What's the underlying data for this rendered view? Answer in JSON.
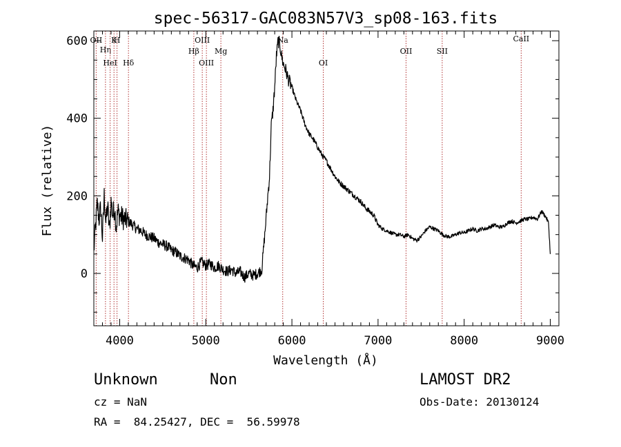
{
  "chart_data": {
    "type": "line",
    "title": "spec-56317-GAC083N57V3_sp08-163.fits",
    "xlabel": "Wavelength (Å)",
    "ylabel": "Flux (relative)",
    "xlim": [
      3700,
      9100
    ],
    "ylim": [
      -135,
      625
    ],
    "xticks": [
      4000,
      5000,
      6000,
      7000,
      8000,
      9000
    ],
    "yticks": [
      0,
      200,
      400,
      600
    ],
    "grid": false,
    "series": [
      {
        "x": [
          3700,
          3720,
          3740,
          3760,
          3780,
          3800,
          3820,
          3840,
          3860,
          3880,
          3900,
          3920,
          3940,
          3960,
          3980,
          4000,
          4050,
          4100,
          4150,
          4200,
          4250,
          4300,
          4350,
          4400,
          4450,
          4500,
          4550,
          4600,
          4650,
          4700,
          4750,
          4800,
          4850,
          4900,
          4950,
          5000,
          5050,
          5100,
          5150,
          5200,
          5250,
          5300,
          5350,
          5400,
          5450,
          5500,
          5550,
          5600,
          5650,
          5700,
          5720,
          5740,
          5760,
          5780,
          5800,
          5820,
          5840,
          5860,
          5880,
          5900,
          5920,
          5940,
          5960,
          5980,
          6000,
          6050,
          6100,
          6150,
          6200,
          6250,
          6300,
          6350,
          6400,
          6450,
          6500,
          6550,
          6600,
          6650,
          6700,
          6750,
          6800,
          6850,
          6900,
          6950,
          7000,
          7050,
          7100,
          7150,
          7200,
          7250,
          7300,
          7350,
          7400,
          7450,
          7500,
          7550,
          7600,
          7650,
          7700,
          7750,
          7800,
          7850,
          7900,
          7950,
          8000,
          8050,
          8100,
          8150,
          8200,
          8250,
          8300,
          8350,
          8400,
          8450,
          8500,
          8550,
          8600,
          8650,
          8700,
          8750,
          8800,
          8850,
          8900,
          8950,
          8980,
          9000
        ],
        "values": [
          60,
          120,
          180,
          140,
          170,
          90,
          200,
          130,
          175,
          110,
          185,
          150,
          170,
          120,
          160,
          150,
          140,
          135,
          125,
          115,
          110,
          100,
          95,
          90,
          80,
          75,
          70,
          60,
          55,
          45,
          40,
          35,
          20,
          15,
          30,
          20,
          25,
          15,
          20,
          10,
          5,
          10,
          0,
          5,
          -10,
          0,
          -5,
          0,
          10,
          140,
          200,
          250,
          380,
          420,
          480,
          560,
          600,
          590,
          560,
          540,
          530,
          515,
          500,
          490,
          480,
          445,
          420,
          385,
          360,
          345,
          325,
          305,
          290,
          270,
          250,
          235,
          225,
          215,
          205,
          195,
          185,
          170,
          160,
          150,
          125,
          115,
          110,
          105,
          100,
          100,
          95,
          100,
          90,
          85,
          95,
          110,
          120,
          115,
          110,
          100,
          95,
          95,
          100,
          105,
          105,
          110,
          115,
          110,
          115,
          115,
          120,
          125,
          120,
          120,
          130,
          135,
          130,
          135,
          140,
          140,
          145,
          140,
          160,
          145,
          130,
          50
        ]
      }
    ],
    "lines": [
      {
        "label": "OII",
        "x": 3727
      },
      {
        "label": "Hη",
        "x": 3835
      },
      {
        "label": "HeI",
        "x": 3889
      },
      {
        "label": "K",
        "x": 3934
      },
      {
        "label": "H",
        "x": 3969
      },
      {
        "label": "Hδ",
        "x": 4102
      },
      {
        "label": "Hβ",
        "x": 4861
      },
      {
        "label": "OIII",
        "x": 4959
      },
      {
        "label": "OIII",
        "x": 5007
      },
      {
        "label": "Mg",
        "x": 5175
      },
      {
        "label": "Na",
        "x": 5893
      },
      {
        "label": "OI",
        "x": 6364
      },
      {
        "label": "OII",
        "x": 7325
      },
      {
        "label": "SII",
        "x": 7745
      },
      {
        "label": "CaII",
        "x": 8662
      }
    ]
  },
  "info": {
    "class_label": "Unknown",
    "subclass_label": "Non",
    "survey": "LAMOST DR2",
    "redshift": "cz = NaN",
    "obs_date": "Obs-Date: 20130124",
    "coords": "RA =  84.25427, DEC =  56.59978"
  },
  "colors": {
    "line_marker": "#b03030",
    "spectrum": "#000000",
    "frame": "#000000"
  }
}
